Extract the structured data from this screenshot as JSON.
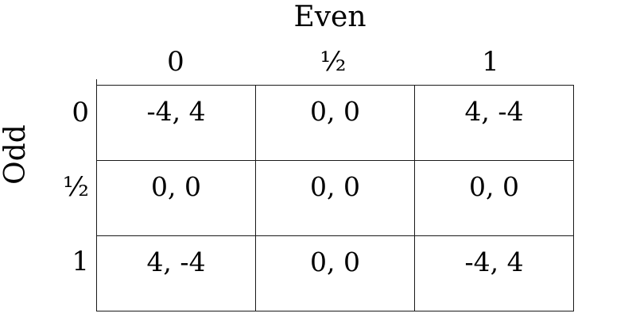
{
  "game": {
    "column_player": "Even",
    "row_player": "Odd",
    "column_strategies": [
      "0",
      "½",
      "1"
    ],
    "row_strategies": [
      "0",
      "½",
      "1"
    ],
    "payoffs": [
      [
        "-4, 4",
        "0, 0",
        "4, -4"
      ],
      [
        "0, 0",
        "0, 0",
        "0, 0"
      ],
      [
        "4, -4",
        "0, 0",
        "-4, 4"
      ]
    ]
  }
}
